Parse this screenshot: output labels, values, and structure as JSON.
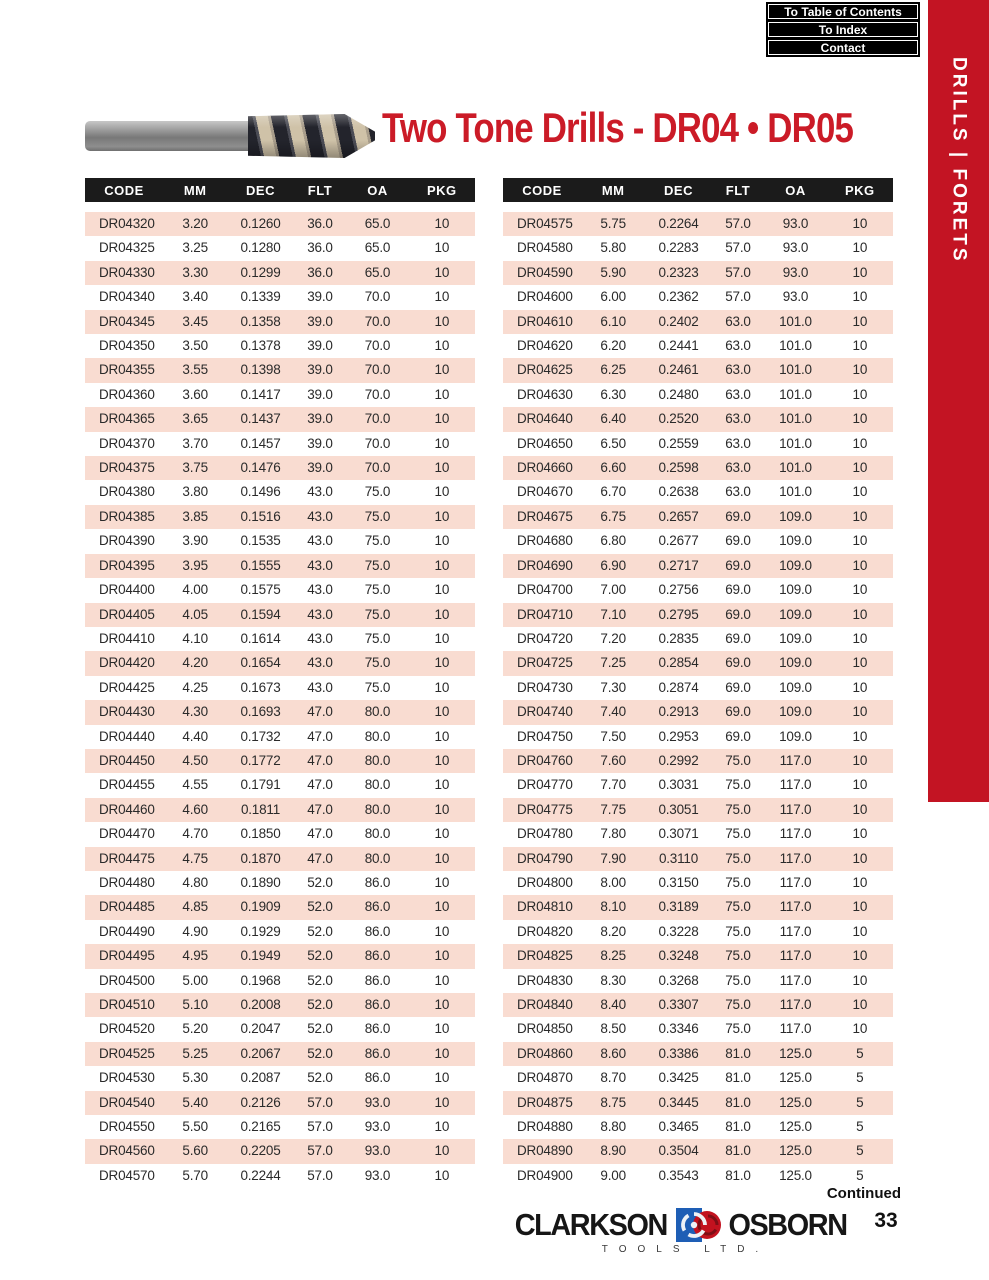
{
  "header": {
    "title": "Two Tone Drills - DR04 • DR05",
    "sidebar_label": "DRILLS | FORETS"
  },
  "nav": {
    "buttons": [
      {
        "label": "To Table of Contents"
      },
      {
        "label": "To Index"
      },
      {
        "label": "Contact"
      }
    ]
  },
  "colors": {
    "accent_red": "#c31423",
    "title_red": "#cb1b27",
    "row_pink": "#f9dcd1",
    "header_black": "#1b1b1b",
    "logo_blue": "#1e5eb5"
  },
  "table": {
    "headers": [
      "CODE",
      "MM",
      "DEC",
      "FLT",
      "OA",
      "PKG"
    ],
    "left_rows": [
      [
        "DR04320",
        "3.20",
        "0.1260",
        "36.0",
        "65.0",
        "10"
      ],
      [
        "DR04325",
        "3.25",
        "0.1280",
        "36.0",
        "65.0",
        "10"
      ],
      [
        "DR04330",
        "3.30",
        "0.1299",
        "36.0",
        "65.0",
        "10"
      ],
      [
        "DR04340",
        "3.40",
        "0.1339",
        "39.0",
        "70.0",
        "10"
      ],
      [
        "DR04345",
        "3.45",
        "0.1358",
        "39.0",
        "70.0",
        "10"
      ],
      [
        "DR04350",
        "3.50",
        "0.1378",
        "39.0",
        "70.0",
        "10"
      ],
      [
        "DR04355",
        "3.55",
        "0.1398",
        "39.0",
        "70.0",
        "10"
      ],
      [
        "DR04360",
        "3.60",
        "0.1417",
        "39.0",
        "70.0",
        "10"
      ],
      [
        "DR04365",
        "3.65",
        "0.1437",
        "39.0",
        "70.0",
        "10"
      ],
      [
        "DR04370",
        "3.70",
        "0.1457",
        "39.0",
        "70.0",
        "10"
      ],
      [
        "DR04375",
        "3.75",
        "0.1476",
        "39.0",
        "70.0",
        "10"
      ],
      [
        "DR04380",
        "3.80",
        "0.1496",
        "43.0",
        "75.0",
        "10"
      ],
      [
        "DR04385",
        "3.85",
        "0.1516",
        "43.0",
        "75.0",
        "10"
      ],
      [
        "DR04390",
        "3.90",
        "0.1535",
        "43.0",
        "75.0",
        "10"
      ],
      [
        "DR04395",
        "3.95",
        "0.1555",
        "43.0",
        "75.0",
        "10"
      ],
      [
        "DR04400",
        "4.00",
        "0.1575",
        "43.0",
        "75.0",
        "10"
      ],
      [
        "DR04405",
        "4.05",
        "0.1594",
        "43.0",
        "75.0",
        "10"
      ],
      [
        "DR04410",
        "4.10",
        "0.1614",
        "43.0",
        "75.0",
        "10"
      ],
      [
        "DR04420",
        "4.20",
        "0.1654",
        "43.0",
        "75.0",
        "10"
      ],
      [
        "DR04425",
        "4.25",
        "0.1673",
        "43.0",
        "75.0",
        "10"
      ],
      [
        "DR04430",
        "4.30",
        "0.1693",
        "47.0",
        "80.0",
        "10"
      ],
      [
        "DR04440",
        "4.40",
        "0.1732",
        "47.0",
        "80.0",
        "10"
      ],
      [
        "DR04450",
        "4.50",
        "0.1772",
        "47.0",
        "80.0",
        "10"
      ],
      [
        "DR04455",
        "4.55",
        "0.1791",
        "47.0",
        "80.0",
        "10"
      ],
      [
        "DR04460",
        "4.60",
        "0.1811",
        "47.0",
        "80.0",
        "10"
      ],
      [
        "DR04470",
        "4.70",
        "0.1850",
        "47.0",
        "80.0",
        "10"
      ],
      [
        "DR04475",
        "4.75",
        "0.1870",
        "47.0",
        "80.0",
        "10"
      ],
      [
        "DR04480",
        "4.80",
        "0.1890",
        "52.0",
        "86.0",
        "10"
      ],
      [
        "DR04485",
        "4.85",
        "0.1909",
        "52.0",
        "86.0",
        "10"
      ],
      [
        "DR04490",
        "4.90",
        "0.1929",
        "52.0",
        "86.0",
        "10"
      ],
      [
        "DR04495",
        "4.95",
        "0.1949",
        "52.0",
        "86.0",
        "10"
      ],
      [
        "DR04500",
        "5.00",
        "0.1968",
        "52.0",
        "86.0",
        "10"
      ],
      [
        "DR04510",
        "5.10",
        "0.2008",
        "52.0",
        "86.0",
        "10"
      ],
      [
        "DR04520",
        "5.20",
        "0.2047",
        "52.0",
        "86.0",
        "10"
      ],
      [
        "DR04525",
        "5.25",
        "0.2067",
        "52.0",
        "86.0",
        "10"
      ],
      [
        "DR04530",
        "5.30",
        "0.2087",
        "52.0",
        "86.0",
        "10"
      ],
      [
        "DR04540",
        "5.40",
        "0.2126",
        "57.0",
        "93.0",
        "10"
      ],
      [
        "DR04550",
        "5.50",
        "0.2165",
        "57.0",
        "93.0",
        "10"
      ],
      [
        "DR04560",
        "5.60",
        "0.2205",
        "57.0",
        "93.0",
        "10"
      ],
      [
        "DR04570",
        "5.70",
        "0.2244",
        "57.0",
        "93.0",
        "10"
      ]
    ],
    "right_rows": [
      [
        "DR04575",
        "5.75",
        "0.2264",
        "57.0",
        "93.0",
        "10"
      ],
      [
        "DR04580",
        "5.80",
        "0.2283",
        "57.0",
        "93.0",
        "10"
      ],
      [
        "DR04590",
        "5.90",
        "0.2323",
        "57.0",
        "93.0",
        "10"
      ],
      [
        "DR04600",
        "6.00",
        "0.2362",
        "57.0",
        "93.0",
        "10"
      ],
      [
        "DR04610",
        "6.10",
        "0.2402",
        "63.0",
        "101.0",
        "10"
      ],
      [
        "DR04620",
        "6.20",
        "0.2441",
        "63.0",
        "101.0",
        "10"
      ],
      [
        "DR04625",
        "6.25",
        "0.2461",
        "63.0",
        "101.0",
        "10"
      ],
      [
        "DR04630",
        "6.30",
        "0.2480",
        "63.0",
        "101.0",
        "10"
      ],
      [
        "DR04640",
        "6.40",
        "0.2520",
        "63.0",
        "101.0",
        "10"
      ],
      [
        "DR04650",
        "6.50",
        "0.2559",
        "63.0",
        "101.0",
        "10"
      ],
      [
        "DR04660",
        "6.60",
        "0.2598",
        "63.0",
        "101.0",
        "10"
      ],
      [
        "DR04670",
        "6.70",
        "0.2638",
        "63.0",
        "101.0",
        "10"
      ],
      [
        "DR04675",
        "6.75",
        "0.2657",
        "69.0",
        "109.0",
        "10"
      ],
      [
        "DR04680",
        "6.80",
        "0.2677",
        "69.0",
        "109.0",
        "10"
      ],
      [
        "DR04690",
        "6.90",
        "0.2717",
        "69.0",
        "109.0",
        "10"
      ],
      [
        "DR04700",
        "7.00",
        "0.2756",
        "69.0",
        "109.0",
        "10"
      ],
      [
        "DR04710",
        "7.10",
        "0.2795",
        "69.0",
        "109.0",
        "10"
      ],
      [
        "DR04720",
        "7.20",
        "0.2835",
        "69.0",
        "109.0",
        "10"
      ],
      [
        "DR04725",
        "7.25",
        "0.2854",
        "69.0",
        "109.0",
        "10"
      ],
      [
        "DR04730",
        "7.30",
        "0.2874",
        "69.0",
        "109.0",
        "10"
      ],
      [
        "DR04740",
        "7.40",
        "0.2913",
        "69.0",
        "109.0",
        "10"
      ],
      [
        "DR04750",
        "7.50",
        "0.2953",
        "69.0",
        "109.0",
        "10"
      ],
      [
        "DR04760",
        "7.60",
        "0.2992",
        "75.0",
        "117.0",
        "10"
      ],
      [
        "DR04770",
        "7.70",
        "0.3031",
        "75.0",
        "117.0",
        "10"
      ],
      [
        "DR04775",
        "7.75",
        "0.3051",
        "75.0",
        "117.0",
        "10"
      ],
      [
        "DR04780",
        "7.80",
        "0.3071",
        "75.0",
        "117.0",
        "10"
      ],
      [
        "DR04790",
        "7.90",
        "0.3110",
        "75.0",
        "117.0",
        "10"
      ],
      [
        "DR04800",
        "8.00",
        "0.3150",
        "75.0",
        "117.0",
        "10"
      ],
      [
        "DR04810",
        "8.10",
        "0.3189",
        "75.0",
        "117.0",
        "10"
      ],
      [
        "DR04820",
        "8.20",
        "0.3228",
        "75.0",
        "117.0",
        "10"
      ],
      [
        "DR04825",
        "8.25",
        "0.3248",
        "75.0",
        "117.0",
        "10"
      ],
      [
        "DR04830",
        "8.30",
        "0.3268",
        "75.0",
        "117.0",
        "10"
      ],
      [
        "DR04840",
        "8.40",
        "0.3307",
        "75.0",
        "117.0",
        "10"
      ],
      [
        "DR04850",
        "8.50",
        "0.3346",
        "75.0",
        "117.0",
        "10"
      ],
      [
        "DR04860",
        "8.60",
        "0.3386",
        "81.0",
        "125.0",
        "5"
      ],
      [
        "DR04870",
        "8.70",
        "0.3425",
        "81.0",
        "125.0",
        "5"
      ],
      [
        "DR04875",
        "8.75",
        "0.3445",
        "81.0",
        "125.0",
        "5"
      ],
      [
        "DR04880",
        "8.80",
        "0.3465",
        "81.0",
        "125.0",
        "5"
      ],
      [
        "DR04890",
        "8.90",
        "0.3504",
        "81.0",
        "125.0",
        "5"
      ],
      [
        "DR04900",
        "9.00",
        "0.3543",
        "81.0",
        "125.0",
        "5"
      ]
    ]
  },
  "footer": {
    "continued": "Continued",
    "logo_left": "CLARKSON",
    "logo_right": "OSBORN",
    "logo_sub": "TOOLS LTD.",
    "page_number": "33"
  }
}
